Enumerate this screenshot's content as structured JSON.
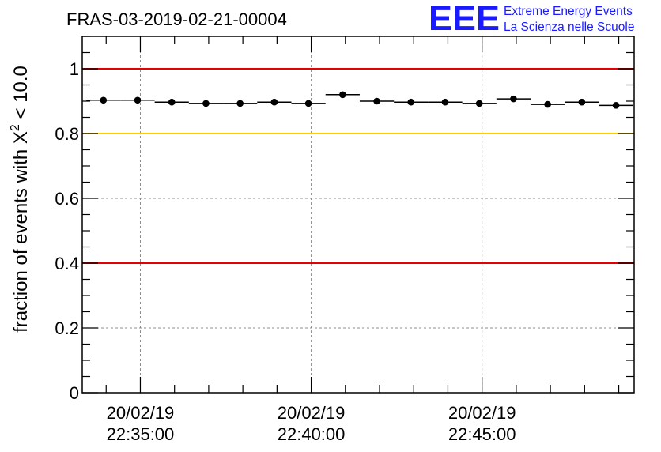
{
  "chart_data": {
    "type": "scatter",
    "title": "FRAS-03-2019-02-21-00004",
    "ylabel": "fraction of events with X",
    "ylabel_superscript": "2",
    "ylabel_suffix": " < 10.0",
    "xlabel": "",
    "ylim": [
      0,
      1.1
    ],
    "yticks": [
      0,
      0.2,
      0.4,
      0.6,
      0.8,
      1
    ],
    "ytick_labels": [
      "0",
      "0.2",
      "0.4",
      "0.6",
      "0.8",
      "1"
    ],
    "xlim_minutes": [
      -1.7,
      14.45
    ],
    "xticks_minutes": [
      0,
      5,
      10
    ],
    "xtick_labels": [
      {
        "date": "20/02/19",
        "time": "22:35:00"
      },
      {
        "date": "20/02/19",
        "time": "22:40:00"
      },
      {
        "date": "20/02/19",
        "time": "22:45:00"
      }
    ],
    "bin_width_minutes": 1,
    "x_minutes": [
      -1.08,
      -0.08,
      0.92,
      1.92,
      2.92,
      3.92,
      4.92,
      5.92,
      6.92,
      7.92,
      8.92,
      9.92,
      10.92,
      11.92,
      12.92,
      13.92
    ],
    "values": [
      0.903,
      0.903,
      0.897,
      0.893,
      0.893,
      0.897,
      0.893,
      0.92,
      0.9,
      0.897,
      0.897,
      0.893,
      0.907,
      0.89,
      0.897,
      0.887
    ],
    "reference_lines": [
      {
        "y": 1.0,
        "color": "#e60000"
      },
      {
        "y": 0.8,
        "color": "#ffcc00"
      },
      {
        "y": 0.4,
        "color": "#e60000"
      }
    ],
    "grid": true
  },
  "logo": {
    "mark": "EEE",
    "line1": "Extreme Energy Events",
    "line2": "La Scienza nelle Scuole",
    "color": "#1a1aff"
  }
}
